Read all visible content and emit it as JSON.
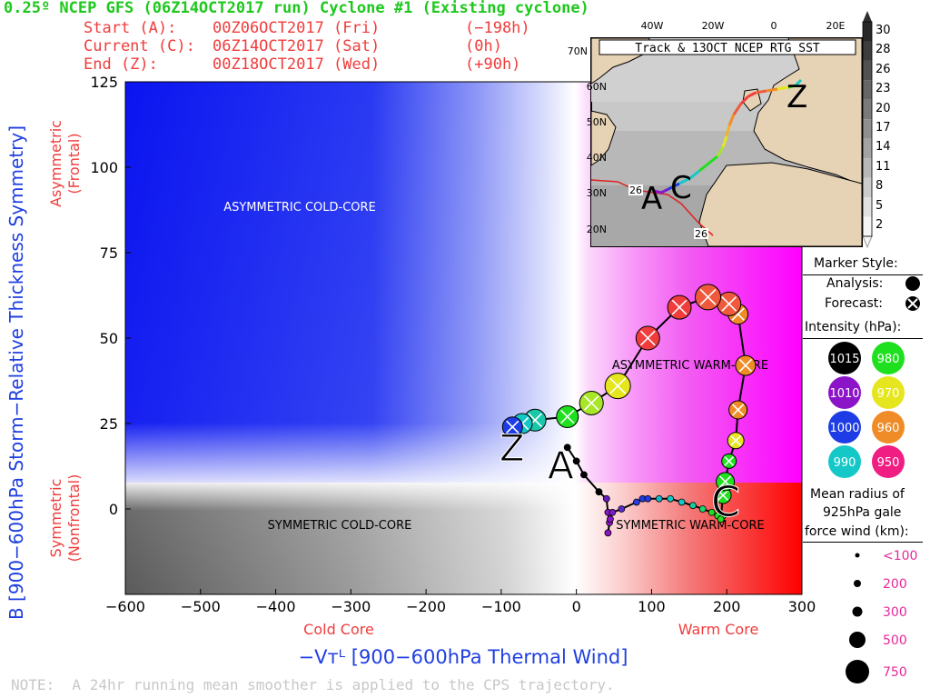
{
  "header": {
    "title": "0.25º NCEP GFS (06Z14OCT2017 run) Cyclone #1 (Existing cyclone)",
    "start_label": "Start (A):",
    "start_date": "00Z06OCT2017 (Fri)",
    "start_offset": "(−198h)",
    "current_label": "Current (C):",
    "current_date": "06Z14OCT2017 (Sat)",
    "current_offset": "(0h)",
    "end_label": "End (Z):",
    "end_date": "00Z18OCT2017 (Wed)",
    "end_offset": "(+90h)"
  },
  "axes": {
    "ylabel": "B [900−600hPa Storm−Relative Thickness Symmetry]",
    "ylabel_top_line1": "Asymmetric",
    "ylabel_top_line2": "(Frontal)",
    "ylabel_bottom_line1": "Symmetric",
    "ylabel_bottom_line2": "(Nonfrontal)",
    "xlabel": "−Vᴛᴸ [900−600hPa Thermal Wind]",
    "xlabel_left": "Cold Core",
    "xlabel_right": "Warm Core"
  },
  "regions": {
    "asym_cold": "ASYMMETRIC COLD-CORE",
    "asym_warm": "ASYMMETRIC WARM-CORE",
    "sym_cold": "SYMMETRIC COLD-CORE",
    "sym_warm": "SYMMETRIC WARM-CORE"
  },
  "markers": {
    "A": "A",
    "C": "C",
    "Z": "Z"
  },
  "note": "NOTE:  A 24hr running mean smoother is applied to the CPS trajectory.",
  "inset": {
    "title": "Track & 13OCT NCEP RTG SST",
    "lon_labels": [
      "40W",
      "20W",
      "0",
      "20E"
    ],
    "lat_labels": [
      "70N",
      "60N",
      "50N",
      "40N",
      "30N",
      "20N"
    ],
    "sst_label_1": "26",
    "sst_label_2": "26",
    "marker_A": "A",
    "marker_C": "C",
    "marker_Z": "Z"
  },
  "colorbar": {
    "ticks": [
      "30",
      "28",
      "26",
      "23",
      "20",
      "17",
      "14",
      "11",
      "8",
      "5",
      "2"
    ]
  },
  "legend": {
    "marker_style": "Marker Style:",
    "analysis": "Analysis:",
    "forecast": "Forecast:",
    "intensity": "Intensity (hPa):",
    "intensity_items": [
      {
        "value": "1015",
        "color": "#000000"
      },
      {
        "value": "980",
        "color": "#1ee01e"
      },
      {
        "value": "1010",
        "color": "#8c14c8"
      },
      {
        "value": "970",
        "color": "#e6e61e"
      },
      {
        "value": "1000",
        "color": "#1e3ce6"
      },
      {
        "value": "960",
        "color": "#f08c28"
      },
      {
        "value": "990",
        "color": "#14c8c8"
      },
      {
        "value": "950",
        "color": "#f01e82"
      }
    ],
    "radius_line1": "Mean radius of",
    "radius_line2": "925hPa gale",
    "radius_line3": "force wind (km):",
    "radius_items": [
      "<100",
      "200",
      "300",
      "500",
      "750"
    ]
  },
  "chart_data": {
    "type": "scatter",
    "xlim": [
      -600,
      300
    ],
    "ylim": [
      -25,
      125
    ],
    "xticks": [
      -600,
      -500,
      -400,
      -300,
      -200,
      -100,
      0,
      100,
      200,
      300
    ],
    "yticks": [
      0,
      25,
      50,
      75,
      100,
      125
    ],
    "analysis_track": [
      {
        "x": -12,
        "y": 18,
        "c": "#000000"
      },
      {
        "x": 0,
        "y": 14,
        "c": "#000000"
      },
      {
        "x": 10,
        "y": 10,
        "c": "#000000"
      },
      {
        "x": 30,
        "y": 5,
        "c": "#000000"
      },
      {
        "x": 40,
        "y": 3,
        "c": "#6a1cc0"
      },
      {
        "x": 42,
        "y": -1,
        "c": "#8c14c8"
      },
      {
        "x": 44,
        "y": -4,
        "c": "#8c14c8"
      },
      {
        "x": 42,
        "y": -7,
        "c": "#8c14c8"
      },
      {
        "x": 45,
        "y": -3,
        "c": "#8c14c8"
      },
      {
        "x": 48,
        "y": -1,
        "c": "#7a1cc8"
      },
      {
        "x": 60,
        "y": 0,
        "c": "#5a2cd0"
      },
      {
        "x": 80,
        "y": 2,
        "c": "#2a3ce0"
      },
      {
        "x": 88,
        "y": 3,
        "c": "#1e3ce6"
      },
      {
        "x": 95,
        "y": 3,
        "c": "#1e3ce6"
      },
      {
        "x": 110,
        "y": 3,
        "c": "#14b8c8"
      },
      {
        "x": 125,
        "y": 3,
        "c": "#14c8c8"
      },
      {
        "x": 140,
        "y": 2,
        "c": "#14c8c8"
      },
      {
        "x": 155,
        "y": 1,
        "c": "#14d0a0"
      },
      {
        "x": 168,
        "y": 0,
        "c": "#18d870"
      },
      {
        "x": 180,
        "y": -1,
        "c": "#1ee01e"
      },
      {
        "x": 188,
        "y": -2,
        "c": "#1ee01e"
      },
      {
        "x": 195,
        "y": -2,
        "c": "#1ee01e"
      },
      {
        "x": 192,
        "y": -3,
        "c": "#1ee01e"
      }
    ],
    "forecast_track": [
      {
        "x": 195,
        "y": 4,
        "c": "#1ee01e",
        "r": 9
      },
      {
        "x": 198,
        "y": 8,
        "c": "#1ee01e",
        "r": 10
      },
      {
        "x": 203,
        "y": 14,
        "c": "#1ee01e",
        "r": 8
      },
      {
        "x": 212,
        "y": 20,
        "c": "#e6e61e",
        "r": 9
      },
      {
        "x": 215,
        "y": 29,
        "c": "#f08c28",
        "r": 10
      },
      {
        "x": 225,
        "y": 42,
        "c": "#f08c28",
        "r": 11
      },
      {
        "x": 215,
        "y": 57,
        "c": "#f08c28",
        "r": 11
      },
      {
        "x": 203,
        "y": 60,
        "c": "#f05a3c",
        "r": 13
      },
      {
        "x": 175,
        "y": 62,
        "c": "#f05a3c",
        "r": 14
      },
      {
        "x": 137,
        "y": 59,
        "c": "#f03c3c",
        "r": 13
      },
      {
        "x": 95,
        "y": 50,
        "c": "#f03c3c",
        "r": 13
      },
      {
        "x": 55,
        "y": 36,
        "c": "#e6e61e",
        "r": 14
      },
      {
        "x": 20,
        "y": 31,
        "c": "#a8e628",
        "r": 13
      },
      {
        "x": -12,
        "y": 27,
        "c": "#1ee01e",
        "r": 12
      },
      {
        "x": -55,
        "y": 26,
        "c": "#18c8a8",
        "r": 12
      },
      {
        "x": -72,
        "y": 25,
        "c": "#14c8c8",
        "r": 11
      },
      {
        "x": -85,
        "y": 24,
        "c": "#1e3ce6",
        "r": 11
      }
    ]
  }
}
